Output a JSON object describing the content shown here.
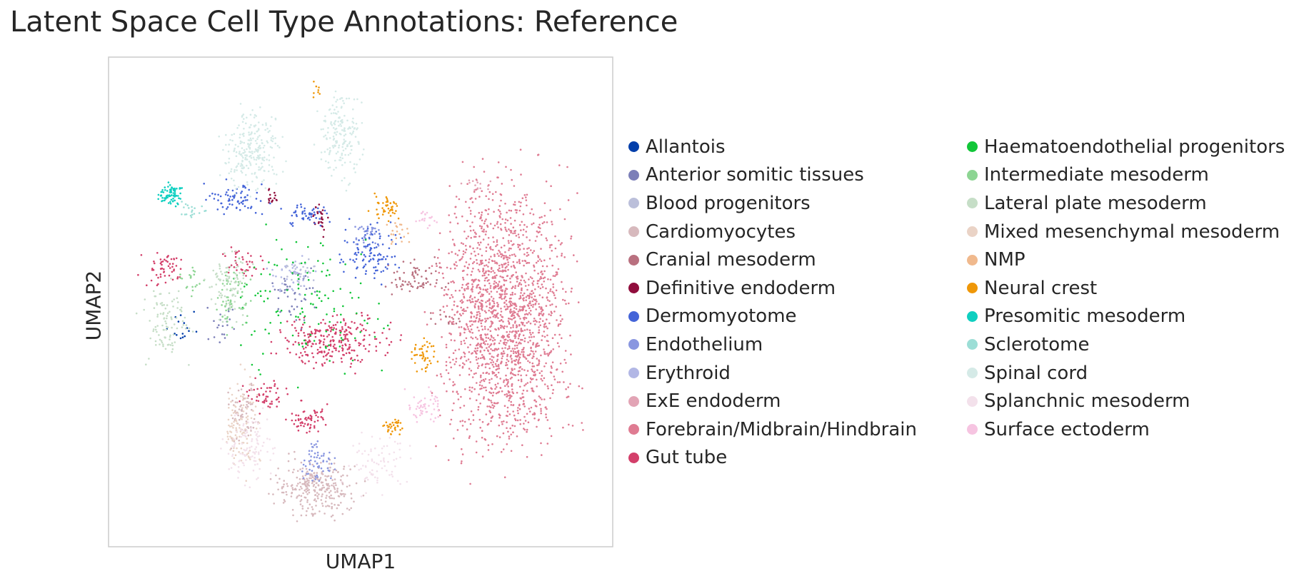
{
  "title": "Latent Space Cell Type Annotations: Reference",
  "chart_data": {
    "type": "scatter",
    "title": "Latent Space Cell Type Annotations: Reference",
    "xlabel": "UMAP1",
    "ylabel": "UMAP2",
    "xticks": [],
    "yticks": [],
    "grid": false,
    "legend_placement": "right",
    "legend_columns": 2,
    "xlim": [
      0,
      1
    ],
    "ylim": [
      0,
      1
    ],
    "series": [
      {
        "name": "Allantois",
        "color": "#023eaa",
        "clusters": [
          {
            "x": [
              0.1,
              0.19
            ],
            "y": [
              0.4,
              0.5
            ],
            "n": 15
          }
        ]
      },
      {
        "name": "Anterior somitic tissues",
        "color": "#7c7fb8",
        "clusters": [
          {
            "x": [
              0.31,
              0.43
            ],
            "y": [
              0.44,
              0.58
            ],
            "n": 45
          },
          {
            "x": [
              0.18,
              0.27
            ],
            "y": [
              0.4,
              0.52
            ],
            "n": 20
          }
        ]
      },
      {
        "name": "Blood progenitors",
        "color": "#bbbfda",
        "clusters": [
          {
            "x": [
              0.34,
              0.44
            ],
            "y": [
              0.52,
              0.6
            ],
            "n": 35
          }
        ]
      },
      {
        "name": "Cardiomyocytes",
        "color": "#d7b9bd",
        "clusters": [
          {
            "x": [
              0.3,
              0.52
            ],
            "y": [
              0.04,
              0.2
            ],
            "n": 280
          },
          {
            "x": [
              0.22,
              0.31
            ],
            "y": [
              0.18,
              0.36
            ],
            "n": 70
          }
        ]
      },
      {
        "name": "Cranial mesoderm",
        "color": "#b9707f",
        "clusters": [
          {
            "x": [
              0.52,
              0.7
            ],
            "y": [
              0.5,
              0.6
            ],
            "n": 70
          },
          {
            "x": [
              0.62,
              0.72
            ],
            "y": [
              0.44,
              0.5
            ],
            "n": 15
          }
        ]
      },
      {
        "name": "Definitive endoderm",
        "color": "#900d3c",
        "clusters": [
          {
            "x": [
              0.4,
              0.44
            ],
            "y": [
              0.62,
              0.72
            ],
            "n": 25
          },
          {
            "x": [
              0.31,
              0.34
            ],
            "y": [
              0.69,
              0.74
            ],
            "n": 15
          }
        ]
      },
      {
        "name": "Dermomyotome",
        "color": "#4464d8",
        "clusters": [
          {
            "x": [
              0.18,
              0.33
            ],
            "y": [
              0.66,
              0.76
            ],
            "n": 70
          },
          {
            "x": [
              0.33,
              0.46
            ],
            "y": [
              0.64,
              0.72
            ],
            "n": 50
          },
          {
            "x": [
              0.44,
              0.6
            ],
            "y": [
              0.52,
              0.68
            ],
            "n": 110
          }
        ]
      },
      {
        "name": "Endothelium",
        "color": "#8996e0",
        "clusters": [
          {
            "x": [
              0.37,
              0.46
            ],
            "y": [
              0.1,
              0.24
            ],
            "n": 60
          },
          {
            "x": [
              0.47,
              0.55
            ],
            "y": [
              0.6,
              0.68
            ],
            "n": 30
          }
        ]
      },
      {
        "name": "Erythroid",
        "color": "#b2b7e5",
        "clusters": [
          {
            "x": [
              0.3,
              0.42
            ],
            "y": [
              0.5,
              0.6
            ],
            "n": 35
          }
        ]
      },
      {
        "name": "ExE endoderm",
        "color": "#e2a4b5",
        "clusters": [
          {
            "x": [
              0.68,
              0.78
            ],
            "y": [
              0.72,
              0.76
            ],
            "n": 15
          }
        ]
      },
      {
        "name": "Forebrain/Midbrain/Hindbrain",
        "color": "#df7b92",
        "clusters": [
          {
            "x": [
              0.61,
              0.96
            ],
            "y": [
              0.1,
              0.85
            ],
            "n": 1800
          }
        ]
      },
      {
        "name": "Gut tube",
        "color": "#d33f6a",
        "clusters": [
          {
            "x": [
              0.3,
              0.6
            ],
            "y": [
              0.34,
              0.5
            ],
            "n": 260
          },
          {
            "x": [
              0.34,
              0.46
            ],
            "y": [
              0.22,
              0.3
            ],
            "n": 60
          },
          {
            "x": [
              0.05,
              0.17
            ],
            "y": [
              0.52,
              0.62
            ],
            "n": 55
          },
          {
            "x": [
              0.2,
              0.34
            ],
            "y": [
              0.54,
              0.62
            ],
            "n": 40
          },
          {
            "x": [
              0.25,
              0.38
            ],
            "y": [
              0.26,
              0.36
            ],
            "n": 50
          }
        ]
      },
      {
        "name": "Haematoendothelial progenitors",
        "color": "#11c638",
        "clusters": [
          {
            "x": [
              0.2,
              0.6
            ],
            "y": [
              0.3,
              0.7
            ],
            "n": 130
          }
        ]
      },
      {
        "name": "Intermediate mesoderm",
        "color": "#8dd593",
        "clusters": [
          {
            "x": [
              0.2,
              0.3
            ],
            "y": [
              0.4,
              0.62
            ],
            "n": 60
          },
          {
            "x": [
              0.12,
              0.2
            ],
            "y": [
              0.5,
              0.6
            ],
            "n": 20
          }
        ]
      },
      {
        "name": "Lateral plate mesoderm",
        "color": "#c6dec7",
        "clusters": [
          {
            "x": [
              0.05,
              0.18
            ],
            "y": [
              0.34,
              0.56
            ],
            "n": 100
          },
          {
            "x": [
              0.18,
              0.3
            ],
            "y": [
              0.44,
              0.62
            ],
            "n": 90
          }
        ]
      },
      {
        "name": "Mixed mesenchymal mesoderm",
        "color": "#ead3c6",
        "clusters": [
          {
            "x": [
              0.21,
              0.31
            ],
            "y": [
              0.12,
              0.4
            ],
            "n": 110
          }
        ]
      },
      {
        "name": "NMP",
        "color": "#f0b98d",
        "clusters": [
          {
            "x": [
              0.53,
              0.62
            ],
            "y": [
              0.6,
              0.68
            ],
            "n": 20
          }
        ]
      },
      {
        "name": "Neural crest",
        "color": "#ef9708",
        "clusters": [
          {
            "x": [
              0.51,
              0.59
            ],
            "y": [
              0.66,
              0.73
            ],
            "n": 45
          },
          {
            "x": [
              0.59,
              0.66
            ],
            "y": [
              0.34,
              0.44
            ],
            "n": 45
          },
          {
            "x": [
              0.53,
              0.6
            ],
            "y": [
              0.22,
              0.27
            ],
            "n": 35
          },
          {
            "x": [
              0.39,
              0.43
            ],
            "y": [
              0.9,
              0.96
            ],
            "n": 8
          }
        ]
      },
      {
        "name": "Presomitic mesoderm",
        "color": "#0fcfc0",
        "clusters": [
          {
            "x": [
              0.09,
              0.16
            ],
            "y": [
              0.69,
              0.75
            ],
            "n": 80
          }
        ]
      },
      {
        "name": "Sclerotome",
        "color": "#9cded6",
        "clusters": [
          {
            "x": [
              0.12,
              0.2
            ],
            "y": [
              0.66,
              0.72
            ],
            "n": 20
          }
        ]
      },
      {
        "name": "Spinal cord",
        "color": "#d5eae7",
        "clusters": [
          {
            "x": [
              0.2,
              0.37
            ],
            "y": [
              0.7,
              0.92
            ],
            "n": 240
          },
          {
            "x": [
              0.4,
              0.52
            ],
            "y": [
              0.72,
              0.96
            ],
            "n": 180
          }
        ]
      },
      {
        "name": "Splanchnic mesoderm",
        "color": "#f3e1eb",
        "clusters": [
          {
            "x": [
              0.22,
              0.34
            ],
            "y": [
              0.1,
              0.3
            ],
            "n": 110
          },
          {
            "x": [
              0.45,
              0.62
            ],
            "y": [
              0.08,
              0.26
            ],
            "n": 80
          }
        ]
      },
      {
        "name": "Surface ectoderm",
        "color": "#f6c4e1",
        "clusters": [
          {
            "x": [
              0.58,
              0.68
            ],
            "y": [
              0.24,
              0.34
            ],
            "n": 50
          },
          {
            "x": [
              0.6,
              0.66
            ],
            "y": [
              0.64,
              0.7
            ],
            "n": 20
          }
        ]
      }
    ]
  }
}
